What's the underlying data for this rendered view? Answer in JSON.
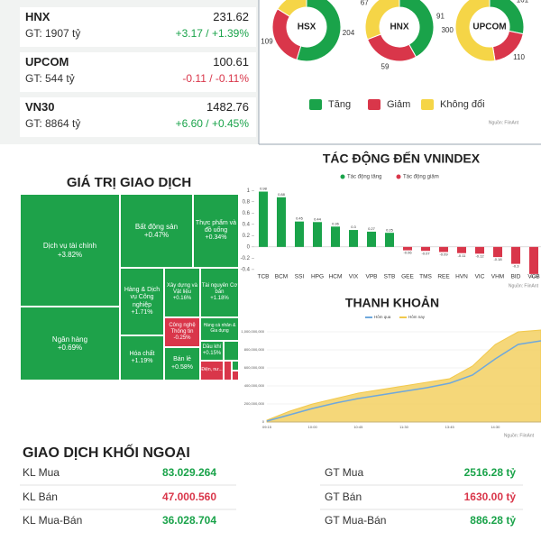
{
  "indices": [
    {
      "name": "HNX",
      "turnover": "GT: 1907 tỷ",
      "value": "231.62",
      "change": "+3.17 / +1.39%",
      "color": "#1aa34a"
    },
    {
      "name": "UPCOM",
      "turnover": "GT: 544 tỷ",
      "value": "100.61",
      "change": "-0.11 / -0.11%",
      "color": "#d9364a"
    },
    {
      "name": "VN30",
      "turnover": "GT: 8864 tỷ",
      "value": "1482.76",
      "change": "+6.60 / +0.45%",
      "color": "#1aa34a"
    }
  ],
  "donut_legend": {
    "labels": [
      "Tăng",
      "Giảm",
      "Không đổi"
    ],
    "colors": [
      "#1aa34a",
      "#d9364a",
      "#f5d547"
    ],
    "source": "Nguồn: FiinAnt"
  },
  "chart_data": [
    {
      "type": "pie",
      "title": "HSX",
      "values": [
        204,
        109,
        60
      ]
    },
    {
      "type": "pie",
      "title": "HNX",
      "values": [
        91,
        59,
        67
      ]
    },
    {
      "type": "pie",
      "title": "UPCOM",
      "values": [
        161,
        110,
        300
      ]
    },
    {
      "type": "treemap",
      "title": "GIÁ TRỊ GIAO DỊCH",
      "cells": [
        {
          "name": "Dịch vụ tài chính",
          "change": "+3.82%",
          "color": "#1ea24a"
        },
        {
          "name": "Ngân hàng",
          "change": "+0.69%",
          "color": "#1ea24a"
        },
        {
          "name": "Bất động sản",
          "change": "+0.47%",
          "color": "#1ea24a"
        },
        {
          "name": "Thực phẩm và đồ uống",
          "change": "+0.34%",
          "color": "#1ea24a"
        },
        {
          "name": "Hàng & Dịch vụ Công nghiệp",
          "change": "+1.71%",
          "color": "#1ea24a"
        },
        {
          "name": "Hóa chất",
          "change": "+1.19%",
          "color": "#1ea24a"
        },
        {
          "name": "Xây dựng và Vật liệu",
          "change": "+0.16%",
          "color": "#1ea24a"
        },
        {
          "name": "Tài nguyên Cơ bản",
          "change": "+1.18%",
          "color": "#1ea24a"
        },
        {
          "name": "Công nghệ Thông tin",
          "change": "-0.25%",
          "color": "#d9364a"
        },
        {
          "name": "Hàng cá nhân & Gia dụng",
          "color": "#1ea24a"
        },
        {
          "name": "Bán lẻ",
          "change": "+0.58%",
          "color": "#1ea24a"
        },
        {
          "name": "Dầu khí",
          "change": "+0.15%",
          "color": "#1ea24a"
        },
        {
          "name": "Điện, nư...",
          "color": "#d9364a"
        }
      ]
    },
    {
      "type": "bar",
      "title": "TÁC ĐỘNG ĐẾN VNINDEX",
      "source": "Nguồn: FiinAnt",
      "categories": [
        "TCB",
        "BCM",
        "SSI",
        "HPG",
        "HCM",
        "VIX",
        "VPB",
        "STB",
        "GEE",
        "TMS",
        "REE",
        "HVN",
        "VIC",
        "VHM",
        "BID",
        "VCB"
      ],
      "series": [
        {
          "name": "Tác động tăng",
          "color": "#1aa34a",
          "values": [
            0.98,
            0.88,
            0.45,
            0.44,
            0.36,
            0.3,
            0.27,
            0.25,
            null,
            null,
            null,
            null,
            null,
            null,
            null,
            null
          ]
        },
        {
          "name": "Tác động giảm",
          "color": "#d9364a",
          "values": [
            null,
            null,
            null,
            null,
            null,
            null,
            null,
            null,
            -0.06,
            -0.07,
            -0.09,
            -0.11,
            -0.12,
            -0.18,
            -0.3,
            -0.48
          ]
        }
      ],
      "ylim": [
        -0.45,
        1.1
      ],
      "yticks": [
        1,
        0.8,
        0.6,
        0.4,
        0.2,
        0,
        -0.2,
        -0.4
      ]
    },
    {
      "type": "line",
      "title": "THANH KHOẢN",
      "source": "Nguồn: FiinAnt",
      "categories": [
        "09:15",
        null,
        "10:00",
        null,
        "10:45",
        null,
        "11:30",
        null,
        "13:45",
        null,
        "14:30",
        null,
        null
      ],
      "series": [
        {
          "name": "Hôm qua",
          "color": "#6fa8dc",
          "values": [
            10000000,
            80000000,
            150000000,
            210000000,
            260000000,
            300000000,
            340000000,
            380000000,
            430000000,
            520000000,
            700000000,
            860000000,
            900000000
          ]
        },
        {
          "name": "Hôm nay",
          "color": "#f2c94c",
          "values": [
            20000000,
            120000000,
            200000000,
            260000000,
            320000000,
            360000000,
            400000000,
            440000000,
            480000000,
            620000000,
            860000000,
            1000000000,
            1020000000
          ]
        }
      ],
      "ylim": [
        0,
        1100000000
      ],
      "yticks": [
        0,
        {
          "value": 200000000,
          "label": "200,000,000"
        },
        {
          "value": 400000000,
          "label": "400,000,000"
        },
        {
          "value": 600000000,
          "label": "600,000,000"
        },
        {
          "value": 800000000,
          "label": "800,000,000"
        },
        {
          "value": 1000000000,
          "label": "1,000,000,000"
        }
      ],
      "grid": true
    }
  ],
  "foreign": {
    "title": "GIAO DỊCH KHỐI NGOẠI",
    "rows": [
      {
        "label": "KL Mua",
        "value": "83.029.264",
        "color": "#1aa34a"
      },
      {
        "label": "KL Bán",
        "value": "47.000.560",
        "color": "#d9364a"
      },
      {
        "label": "KL Mua-Bán",
        "value": "36.028.704",
        "color": "#1aa34a"
      },
      {
        "label": "GT Mua",
        "value": "2516.28 tỷ",
        "color": "#1aa34a"
      },
      {
        "label": "GT Bán",
        "value": "1630.00 tỷ",
        "color": "#d9364a"
      },
      {
        "label": "GT Mua-Bán",
        "value": "886.28 tỷ",
        "color": "#1aa34a"
      }
    ]
  }
}
